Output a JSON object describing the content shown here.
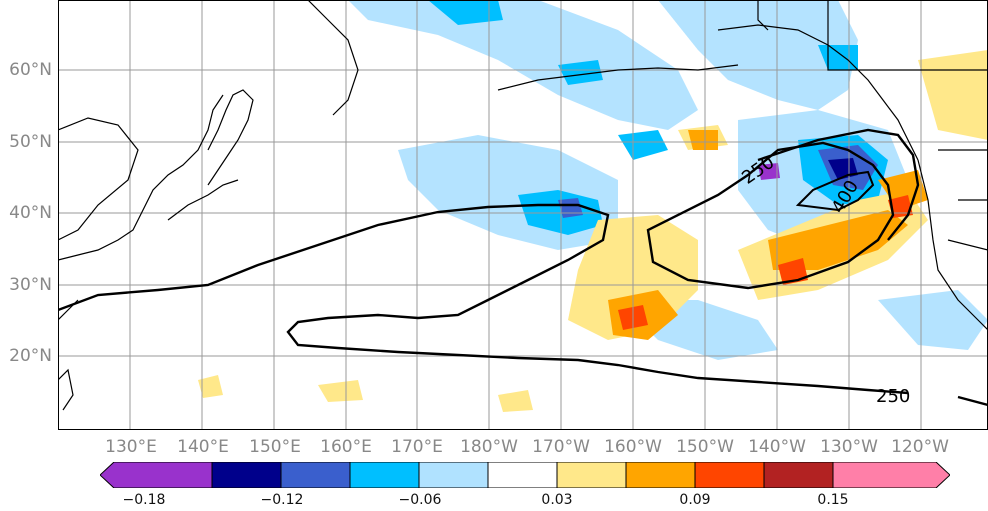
{
  "map": {
    "latitude_labels": [
      "60°N",
      "50°N",
      "40°N",
      "30°N",
      "20°N"
    ],
    "longitude_labels": [
      "130°E",
      "140°E",
      "150°E",
      "160°E",
      "170°E",
      "180°W",
      "170°W",
      "160°W",
      "150°W",
      "140°W",
      "130°W",
      "120°W"
    ],
    "contour_labels": [
      "250",
      "400",
      "250"
    ],
    "colors": {
      "purple": "#9932cc",
      "navy": "#00008b",
      "royal_blue": "#3a5fcd",
      "deep_sky": "#00bfff",
      "light_blue": "#b0e2ff",
      "white": "#ffffff",
      "light_yellow": "#ffe88a",
      "orange": "#ffa500",
      "orange_red": "#ff4500",
      "brown_red": "#b22222",
      "pink": "#ff7fa8"
    }
  },
  "colorbar": {
    "tick_labels": [
      "−0.18",
      "−0.12",
      "−0.06",
      "0.03",
      "0.09",
      "0.15"
    ],
    "levels": [
      "purple",
      "navy",
      "royal_blue",
      "deep_sky",
      "light_blue",
      "white",
      "light_yellow",
      "orange",
      "orange_red",
      "brown_red",
      "pink"
    ]
  }
}
